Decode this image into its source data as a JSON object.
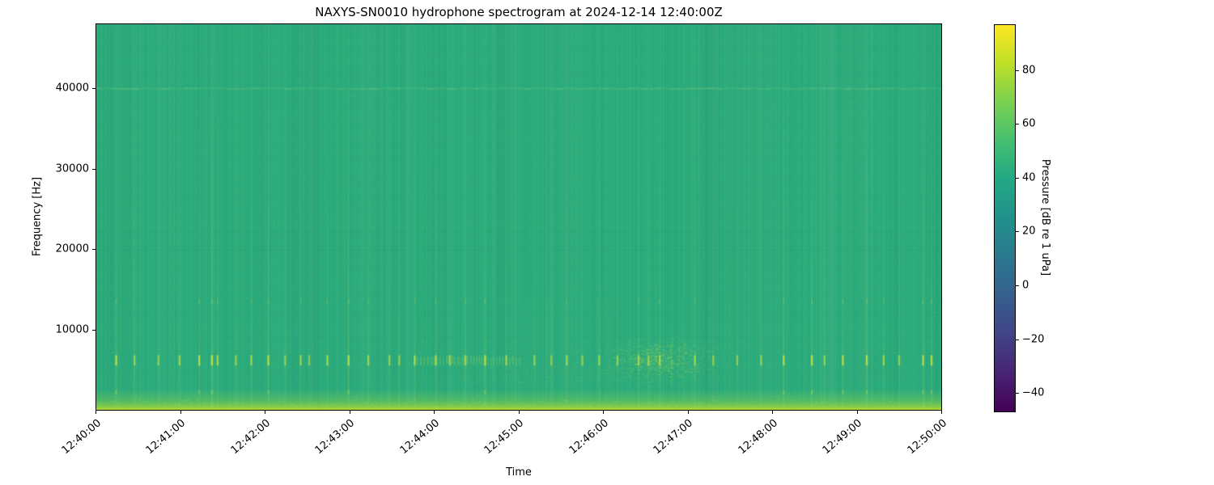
{
  "chart_data": {
    "type": "heatmap",
    "subtype": "spectrogram",
    "title": "NAXYS-SN0010 hydrophone spectrogram at 2024-12-14 12:40:00Z",
    "xlabel": "Time",
    "ylabel": "Frequency [Hz]",
    "x_tick_labels": [
      "12:40:00",
      "12:41:00",
      "12:42:00",
      "12:43:00",
      "12:44:00",
      "12:45:00",
      "12:46:00",
      "12:47:00",
      "12:48:00",
      "12:49:00",
      "12:50:00"
    ],
    "x_range_seconds": [
      0,
      600
    ],
    "y_ticks_hz": [
      10000,
      20000,
      30000,
      40000
    ],
    "y_range_hz": [
      0,
      48000
    ],
    "grid": false,
    "colorbar": {
      "label": "Pressure [dB re 1 uPa]",
      "ticks": [
        80,
        60,
        40,
        20,
        0,
        -20,
        -40
      ],
      "value_range": [
        -46.5,
        97.0
      ],
      "colormap": "viridis",
      "stops": [
        "#440154",
        "#482475",
        "#414487",
        "#355f8d",
        "#2a788e",
        "#21918c",
        "#22a884",
        "#44bf70",
        "#7ad151",
        "#bddf26",
        "#fde725"
      ]
    },
    "background_level_db": 47,
    "background_color": "#2bac7c",
    "features": {
      "low_frequency_band": {
        "f_max_hz": 2600,
        "peak_level_db": 78,
        "edge_color": "#bcde26",
        "mid_color": "#78cd50"
      },
      "tonal_line": {
        "f_hz": 40000,
        "level_db": 52
      },
      "pulse_band_hz": [
        5500,
        6800
      ],
      "broadband_pulses": [
        [
          14,
          0.85
        ],
        [
          27,
          0.5
        ],
        [
          44,
          0.45
        ],
        [
          59,
          0.55
        ],
        [
          73,
          0.8
        ],
        [
          82,
          0.9
        ],
        [
          86,
          0.7
        ],
        [
          99,
          0.5
        ],
        [
          110,
          0.6
        ],
        [
          122,
          0.75
        ],
        [
          134,
          0.5
        ],
        [
          145,
          0.6
        ],
        [
          151,
          0.4
        ],
        [
          164,
          0.65
        ],
        [
          179,
          0.85
        ],
        [
          193,
          0.6
        ],
        [
          208,
          0.5
        ],
        [
          215,
          0.45
        ],
        [
          226,
          0.6
        ],
        [
          241,
          0.7
        ],
        [
          251,
          0.5
        ],
        [
          262,
          0.6
        ],
        [
          276,
          0.8
        ],
        [
          291,
          0.55
        ],
        [
          311,
          0.5
        ],
        [
          323,
          0.4
        ],
        [
          334,
          0.6
        ],
        [
          345,
          0.5
        ],
        [
          357,
          0.55
        ],
        [
          370,
          0.5
        ],
        [
          385,
          0.6
        ],
        [
          392,
          0.5
        ],
        [
          400,
          0.7
        ],
        [
          425,
          0.6
        ],
        [
          438,
          0.5
        ],
        [
          455,
          0.45
        ],
        [
          472,
          0.5
        ],
        [
          488,
          0.75
        ],
        [
          508,
          0.9
        ],
        [
          517,
          0.5
        ],
        [
          530,
          0.8
        ],
        [
          547,
          0.85
        ],
        [
          559,
          0.6
        ],
        [
          570,
          0.5
        ],
        [
          587,
          0.8
        ],
        [
          593,
          0.85
        ]
      ],
      "pulse_train": {
        "t_start": 226,
        "t_end": 303,
        "interval_s": 1.8,
        "strength": 0.3
      },
      "sweep_cluster": {
        "t_start": 290,
        "t_end": 450,
        "f_low_hz": 2600,
        "f_high_hz": 13800,
        "peak_t_s": 400,
        "peak_f_hz": 6300
      },
      "striations": {
        "t_start": 255,
        "t_end": 425,
        "f_top_hz": 5600,
        "f_bottom_hz": 3600,
        "count": 7
      }
    }
  }
}
